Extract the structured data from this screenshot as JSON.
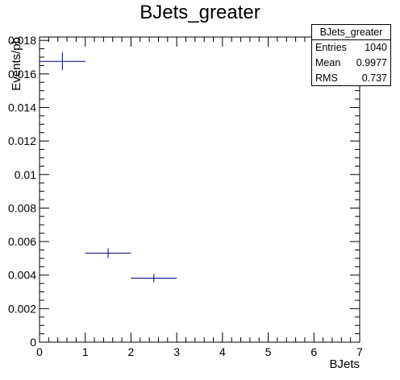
{
  "chart_data": {
    "type": "histogram",
    "title": "BJets_greater",
    "xlabel": "BJets",
    "ylabel": "Events/pb",
    "xlim": [
      0,
      7
    ],
    "ylim": [
      0,
      0.0182
    ],
    "x_ticks": [
      "0",
      "1",
      "2",
      "3",
      "4",
      "5",
      "6",
      "7"
    ],
    "y_ticks": [
      "0",
      "0.002",
      "0.004",
      "0.006",
      "0.008",
      "0.01",
      "0.012",
      "0.014",
      "0.016",
      "0.018"
    ],
    "bins": [
      {
        "x_low": 0,
        "x_high": 1,
        "value": 0.01675,
        "error": 0.00052
      },
      {
        "x_low": 1,
        "x_high": 2,
        "value": 0.00531,
        "error": 0.00029
      },
      {
        "x_low": 2,
        "x_high": 3,
        "value": 0.00382,
        "error": 0.00025
      }
    ],
    "series_color": "#000080",
    "stats": {
      "name": "BJets_greater",
      "rows": [
        {
          "label": "Entries",
          "value": "1040"
        },
        {
          "label": "Mean",
          "value": "0.9977"
        },
        {
          "label": "RMS",
          "value": "0.737"
        }
      ]
    }
  }
}
